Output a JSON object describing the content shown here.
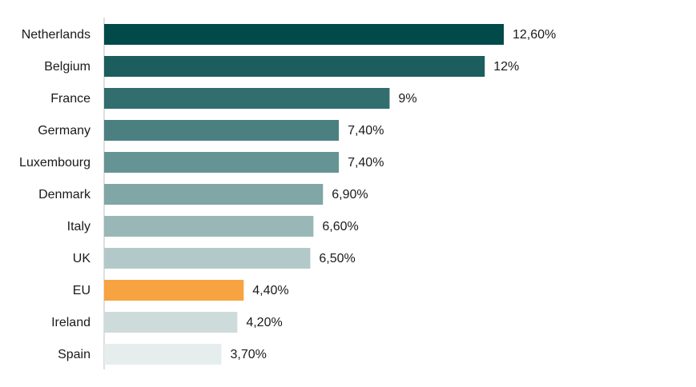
{
  "chart_data": {
    "type": "bar",
    "orientation": "horizontal",
    "categories": [
      "Netherlands",
      "Belgium",
      "France",
      "Germany",
      "Luxembourg",
      "Denmark",
      "Italy",
      "UK",
      "EU",
      "Ireland",
      "Spain"
    ],
    "values": [
      12.6,
      12.0,
      9.0,
      7.4,
      7.4,
      6.9,
      6.6,
      6.5,
      4.4,
      4.2,
      3.7
    ],
    "value_labels": [
      "12,60%",
      "12%",
      "9%",
      "7,40%",
      "7,40%",
      "6,90%",
      "6,60%",
      "6,50%",
      "4,40%",
      "4,20%",
      "3,70%"
    ],
    "colors": [
      "#004A4A",
      "#1C5D5D",
      "#336E6E",
      "#4C8080",
      "#669494",
      "#80A6A6",
      "#99B7B7",
      "#B3C9C9",
      "#F7A341",
      "#CDDBDB",
      "#E6EDED"
    ],
    "xlim": [
      0,
      12.6
    ],
    "grid": false,
    "legend": "none",
    "title": "",
    "xlabel": "",
    "ylabel": ""
  }
}
